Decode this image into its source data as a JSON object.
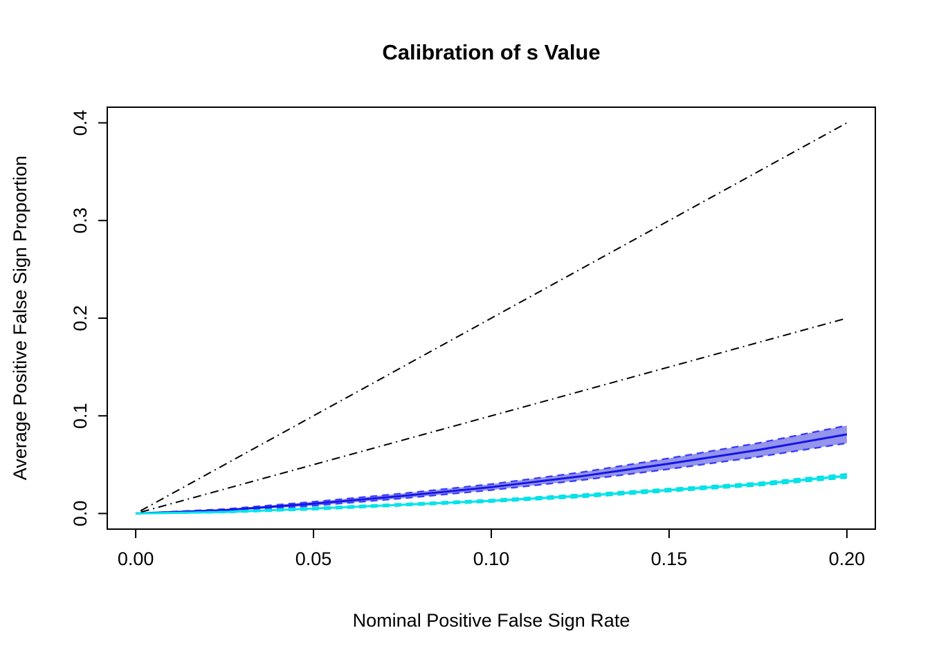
{
  "chart_data": {
    "type": "line",
    "title": "Calibration of s Value",
    "xlabel": "Nominal Positive False Sign Rate",
    "ylabel": "Average Positive False Sign Proportion",
    "xlim": [
      0,
      0.2
    ],
    "ylim": [
      0,
      0.4
    ],
    "grid": false,
    "legend": "none",
    "xticks": {
      "values": [
        0,
        0.05,
        0.1,
        0.15,
        0.2
      ],
      "labels": [
        "0.00",
        "0.05",
        "0.10",
        "0.15",
        "0.20"
      ]
    },
    "yticks": {
      "values": [
        0,
        0.1,
        0.2,
        0.3,
        0.4
      ],
      "labels": [
        "0.0",
        "0.1",
        "0.2",
        "0.3",
        "0.4"
      ]
    },
    "reference_lines": [
      {
        "name": "twice-nominal-reference",
        "style": "dotdash",
        "color": "#000000",
        "x": [
          0,
          0.2
        ],
        "y": [
          0,
          0.4
        ]
      },
      {
        "name": "identity-reference",
        "style": "dotdash",
        "color": "#000000",
        "x": [
          0,
          0.2
        ],
        "y": [
          0,
          0.2
        ]
      }
    ],
    "x": [
      0,
      0.025,
      0.05,
      0.075,
      0.1,
      0.125,
      0.15,
      0.175,
      0.2
    ],
    "series": [
      {
        "name": "svalue-blue",
        "color": "#1515e6",
        "band_fill": "#9595ec",
        "band_edge_color": "#3b3bff",
        "mean": [
          0,
          0.0035,
          0.01,
          0.018,
          0.027,
          0.038,
          0.051,
          0.065,
          0.081
        ],
        "lower": [
          0,
          0.0025,
          0.008,
          0.0155,
          0.024,
          0.034,
          0.0455,
          0.058,
          0.072
        ],
        "upper": [
          0,
          0.0045,
          0.012,
          0.0205,
          0.03,
          0.042,
          0.0565,
          0.072,
          0.09
        ]
      },
      {
        "name": "svalue-cyan",
        "color": "#00e5ee",
        "band_fill": "#b3f7f7",
        "band_edge_color": "#00dddd",
        "mean": [
          0,
          0.0015,
          0.005,
          0.009,
          0.013,
          0.018,
          0.024,
          0.03,
          0.0385
        ],
        "lower": [
          0,
          0.001,
          0.004,
          0.008,
          0.0118,
          0.0165,
          0.0225,
          0.0285,
          0.0365
        ],
        "upper": [
          0,
          0.002,
          0.006,
          0.01,
          0.0142,
          0.0195,
          0.0255,
          0.0315,
          0.0405
        ]
      }
    ]
  }
}
